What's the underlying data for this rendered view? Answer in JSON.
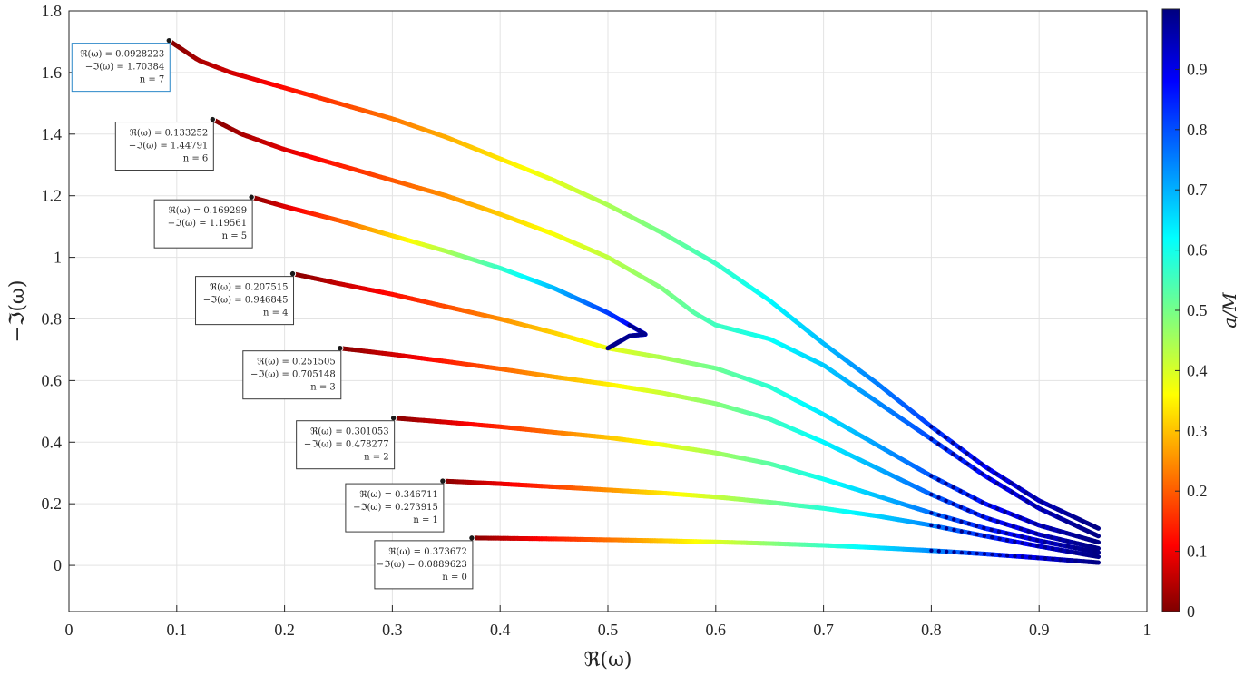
{
  "chart_data": {
    "type": "line",
    "xlabel": "ℜ(ω)",
    "ylabel": "−ℑ(ω)",
    "xlim": [
      0,
      1
    ],
    "ylim": [
      -0.15,
      1.8
    ],
    "xticks": [
      "0",
      "0.1",
      "0.2",
      "0.3",
      "0.4",
      "0.5",
      "0.6",
      "0.7",
      "0.8",
      "0.9",
      "1"
    ],
    "yticks": [
      "0",
      "0.2",
      "0.4",
      "0.6",
      "0.8",
      "1",
      "1.2",
      "1.4",
      "1.6",
      "1.8"
    ],
    "grid": true,
    "colorbar": {
      "label": "a/M",
      "range": [
        0,
        1
      ],
      "ticks": [
        "0",
        "0.1",
        "0.2",
        "0.3",
        "0.4",
        "0.5",
        "0.6",
        "0.7",
        "0.8",
        "0.9"
      ],
      "colormap": "jet"
    },
    "series": [
      {
        "n": 0,
        "x": [
          0.373672,
          0.4,
          0.45,
          0.5,
          0.55,
          0.6,
          0.65,
          0.7,
          0.75,
          0.8,
          0.85,
          0.9,
          0.955
        ],
        "y": [
          0.0889623,
          0.088,
          0.086,
          0.083,
          0.08,
          0.076,
          0.071,
          0.065,
          0.057,
          0.048,
          0.037,
          0.024,
          0.009
        ]
      },
      {
        "n": 1,
        "x": [
          0.346711,
          0.4,
          0.45,
          0.5,
          0.55,
          0.6,
          0.65,
          0.7,
          0.75,
          0.8,
          0.85,
          0.9,
          0.955
        ],
        "y": [
          0.273915,
          0.265,
          0.255,
          0.245,
          0.235,
          0.222,
          0.205,
          0.185,
          0.16,
          0.13,
          0.095,
          0.062,
          0.028
        ]
      },
      {
        "n": 2,
        "x": [
          0.301053,
          0.35,
          0.4,
          0.45,
          0.5,
          0.55,
          0.6,
          0.65,
          0.7,
          0.75,
          0.8,
          0.85,
          0.9,
          0.955
        ],
        "y": [
          0.478277,
          0.465,
          0.45,
          0.432,
          0.415,
          0.392,
          0.365,
          0.33,
          0.28,
          0.225,
          0.17,
          0.12,
          0.08,
          0.042
        ]
      },
      {
        "n": 3,
        "x": [
          0.251505,
          0.3,
          0.35,
          0.4,
          0.45,
          0.5,
          0.55,
          0.6,
          0.65,
          0.7,
          0.75,
          0.8,
          0.85,
          0.9,
          0.955
        ],
        "y": [
          0.705148,
          0.685,
          0.662,
          0.638,
          0.612,
          0.588,
          0.56,
          0.525,
          0.475,
          0.4,
          0.315,
          0.23,
          0.155,
          0.1,
          0.055
        ]
      },
      {
        "n": 4,
        "x": [
          0.207515,
          0.25,
          0.3,
          0.35,
          0.4,
          0.45,
          0.5,
          0.55,
          0.6,
          0.65,
          0.7,
          0.75,
          0.8,
          0.85,
          0.9,
          0.955
        ],
        "y": [
          0.946845,
          0.915,
          0.88,
          0.84,
          0.8,
          0.755,
          0.705,
          0.675,
          0.64,
          0.58,
          0.49,
          0.39,
          0.29,
          0.2,
          0.13,
          0.075
        ]
      },
      {
        "n": 5,
        "x": [
          0.169299,
          0.2,
          0.25,
          0.3,
          0.35,
          0.4,
          0.45,
          0.5,
          0.52,
          0.535,
          0.52,
          0.5
        ],
        "y": [
          1.19561,
          1.165,
          1.12,
          1.07,
          1.02,
          0.965,
          0.9,
          0.82,
          0.78,
          0.75,
          0.745,
          0.705
        ]
      },
      {
        "n": 6,
        "x": [
          0.133252,
          0.16,
          0.2,
          0.25,
          0.3,
          0.35,
          0.4,
          0.45,
          0.5,
          0.55,
          0.58,
          0.6,
          0.65,
          0.7,
          0.75,
          0.8,
          0.85,
          0.9,
          0.955
        ],
        "y": [
          1.44791,
          1.4,
          1.35,
          1.3,
          1.25,
          1.2,
          1.14,
          1.075,
          1.0,
          0.9,
          0.82,
          0.78,
          0.735,
          0.65,
          0.53,
          0.41,
          0.29,
          0.185,
          0.095
        ]
      },
      {
        "n": 7,
        "x": [
          0.0928223,
          0.12,
          0.15,
          0.2,
          0.25,
          0.3,
          0.35,
          0.4,
          0.45,
          0.5,
          0.55,
          0.6,
          0.65,
          0.7,
          0.75,
          0.8,
          0.85,
          0.9,
          0.955
        ],
        "y": [
          1.70384,
          1.64,
          1.6,
          1.55,
          1.5,
          1.45,
          1.39,
          1.32,
          1.25,
          1.17,
          1.08,
          0.98,
          0.86,
          0.72,
          0.59,
          0.45,
          0.32,
          0.21,
          0.12
        ]
      }
    ],
    "annotations": [
      {
        "n": 7,
        "line1": "ℜ(ω) = 0.0928223",
        "line2": "−ℑ(ω) = 1.70384",
        "line3": "n = 7"
      },
      {
        "n": 6,
        "line1": "ℜ(ω) = 0.133252",
        "line2": "−ℑ(ω) = 1.44791",
        "line3": "n = 6"
      },
      {
        "n": 5,
        "line1": "ℜ(ω) = 0.169299",
        "line2": "−ℑ(ω) = 1.19561",
        "line3": "n = 5"
      },
      {
        "n": 4,
        "line1": "ℜ(ω) = 0.207515",
        "line2": "−ℑ(ω) = 0.946845",
        "line3": "n = 4"
      },
      {
        "n": 3,
        "line1": "ℜ(ω) = 0.251505",
        "line2": "−ℑ(ω) = 0.705148",
        "line3": "n = 3"
      },
      {
        "n": 2,
        "line1": "ℜ(ω) = 0.301053",
        "line2": "−ℑ(ω) = 0.478277",
        "line3": "n = 2"
      },
      {
        "n": 1,
        "line1": "ℜ(ω) = 0.346711",
        "line2": "−ℑ(ω) = 0.273915",
        "line3": "n = 1"
      },
      {
        "n": 0,
        "line1": "ℜ(ω) = 0.373672",
        "line2": "−ℑ(ω) = 0.0889623",
        "line3": "n = 0"
      }
    ],
    "colors": {
      "axis": "#262626",
      "grid": "#e3e3e3",
      "annotation_border_selected": "#2a86c8",
      "annotation_border": "#3a3a3a"
    }
  }
}
